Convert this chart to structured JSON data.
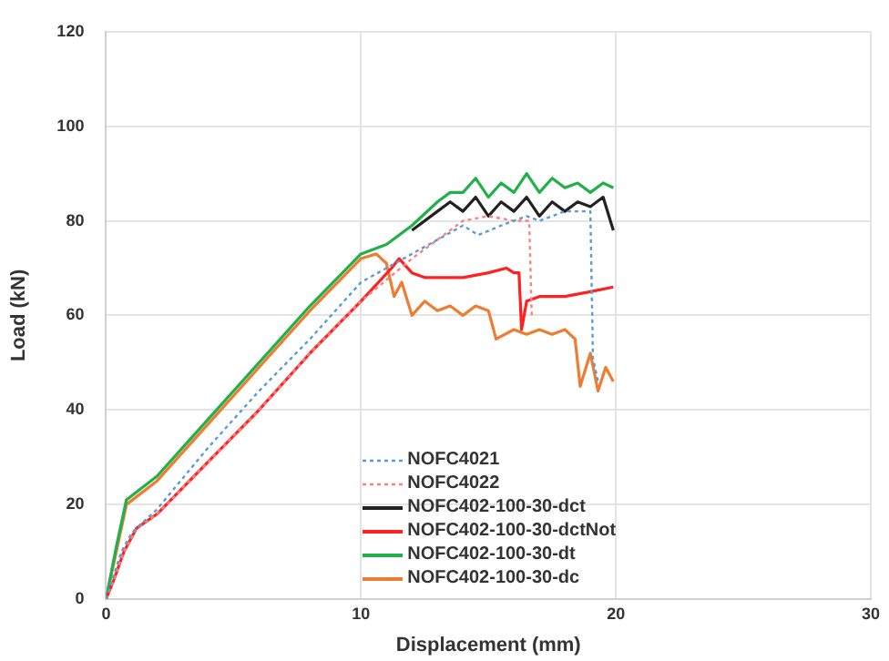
{
  "chart_data": {
    "type": "line",
    "xlabel": "Displacement (mm)",
    "ylabel": "Load (kN)",
    "xlim": [
      0,
      30
    ],
    "xticks": [
      0,
      10,
      20,
      30
    ],
    "ylim": [
      0,
      120
    ],
    "yticks": [
      0,
      20,
      40,
      60,
      80,
      100,
      120
    ],
    "grid": true,
    "legend": "bottom",
    "marker": "none",
    "series": [
      {
        "name": "NOFC4021",
        "color": "#5b9bd5",
        "line_style": "dotted",
        "x": [
          0,
          0.3,
          0.6,
          1,
          2,
          4,
          6,
          8,
          10,
          12,
          14,
          14.6,
          15.5,
          16.5,
          17,
          18,
          19,
          19.1,
          19.3
        ],
        "values": [
          0,
          5,
          10,
          14,
          19,
          32,
          44,
          55,
          67,
          73,
          79,
          77,
          79,
          81,
          80,
          82,
          82,
          51,
          46
        ]
      },
      {
        "name": "NOFC4022",
        "color": "#ff8080",
        "line_style": "dotted",
        "x": [
          0,
          0.3,
          0.7,
          1.2,
          2,
          4,
          6,
          8,
          10,
          12,
          14,
          15,
          16,
          16.6,
          16.7
        ],
        "values": [
          0,
          4,
          10,
          15,
          18,
          29,
          40,
          52,
          63,
          72,
          80,
          81,
          80,
          80,
          60
        ]
      },
      {
        "name": "NOFC402-100-30-dct",
        "color": "#222222",
        "line_style": "solid",
        "x": [
          12,
          13,
          13.5,
          14,
          14.5,
          15,
          15.5,
          16,
          16.5,
          17,
          17.5,
          18,
          18.5,
          19,
          19.5,
          19.9
        ],
        "values": [
          78,
          82,
          84,
          82,
          85,
          81,
          84,
          82,
          85,
          81,
          84,
          82,
          84,
          83,
          85,
          78
        ]
      },
      {
        "name": "NOFC402-100-30-dctNot",
        "color": "#ff2020",
        "line_style": "solid",
        "x": [
          0,
          0.3,
          0.7,
          1.2,
          2,
          4,
          6,
          8,
          10,
          11.2,
          11.5,
          12,
          12.5,
          14,
          15,
          15.7,
          16,
          16.2,
          16.3,
          16.5,
          17,
          18,
          19,
          19.9
        ],
        "values": [
          0,
          4,
          10,
          15,
          18,
          29,
          40,
          52,
          63,
          70,
          72,
          69,
          68,
          68,
          69,
          70,
          69,
          69,
          57,
          63,
          64,
          64,
          65,
          66
        ]
      },
      {
        "name": "NOFC402-100-30-dt",
        "color": "#22b04b",
        "line_style": "solid",
        "x": [
          0,
          0.4,
          0.8,
          2,
          4,
          6,
          8,
          10,
          11,
          12,
          13,
          13.5,
          14,
          14.5,
          15,
          15.5,
          16,
          16.5,
          17,
          17.5,
          18,
          18.5,
          19,
          19.5,
          19.9
        ],
        "values": [
          0,
          11,
          21,
          26,
          38,
          50,
          62,
          73,
          75,
          79,
          84,
          86,
          86,
          89,
          85,
          88,
          86,
          90,
          86,
          89,
          87,
          88,
          86,
          88,
          87
        ]
      },
      {
        "name": "NOFC402-100-30-dc",
        "color": "#ed7d31",
        "line_style": "solid",
        "x": [
          0,
          0.4,
          0.8,
          2,
          4,
          6,
          8,
          10,
          10.6,
          11,
          11.3,
          11.6,
          12,
          12.5,
          13,
          13.5,
          14,
          14.5,
          15,
          15.3,
          16,
          16.5,
          17,
          17.5,
          18,
          18.4,
          18.6,
          19,
          19.3,
          19.6,
          19.9
        ],
        "values": [
          0,
          10,
          20,
          25,
          37,
          49,
          61,
          72,
          73,
          71,
          64,
          67,
          60,
          63,
          61,
          62,
          60,
          62,
          61,
          55,
          57,
          56,
          57,
          56,
          57,
          55,
          45,
          52,
          44,
          49,
          46
        ]
      }
    ]
  }
}
